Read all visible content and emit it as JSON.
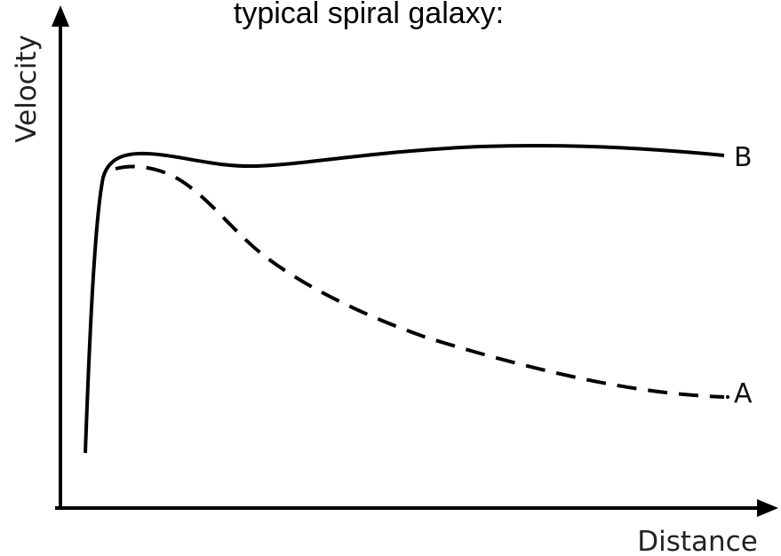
{
  "title": "typical spiral galaxy:",
  "y_axis_label": "Velocity",
  "x_axis_label": "Distance",
  "curves": [
    {
      "label": "A"
    },
    {
      "label": "B"
    }
  ]
}
